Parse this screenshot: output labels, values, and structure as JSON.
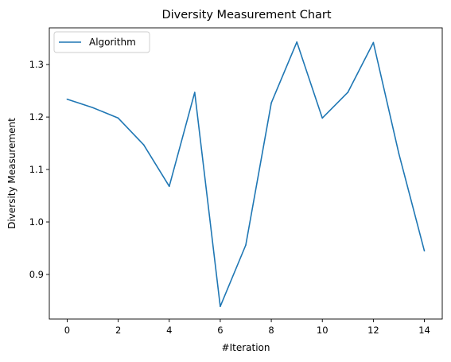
{
  "chart_data": {
    "type": "line",
    "title": "Diversity Measurement Chart",
    "xlabel": "#Iteration",
    "ylabel": "Diversity Measurement",
    "xlim": [
      -0.7,
      14.7
    ],
    "ylim": [
      0.815,
      1.37
    ],
    "xticks": [
      0,
      2,
      4,
      6,
      8,
      10,
      12,
      14
    ],
    "yticks": [
      0.9,
      1.0,
      1.1,
      1.2,
      1.3
    ],
    "ytick_labels": [
      "0.9",
      "1.0",
      "1.1",
      "1.2",
      "1.3"
    ],
    "grid": false,
    "legend_position": "upper-left",
    "series": [
      {
        "name": "Algorithm",
        "color": "#1f77b4",
        "x": [
          0,
          1,
          2,
          3,
          4,
          5,
          6,
          7,
          8,
          9,
          10,
          11,
          12,
          13,
          14
        ],
        "y": [
          1.234,
          1.218,
          1.198,
          1.147,
          1.068,
          1.247,
          0.839,
          0.956,
          1.227,
          1.343,
          1.198,
          1.247,
          1.342,
          1.13,
          0.945
        ]
      }
    ]
  }
}
